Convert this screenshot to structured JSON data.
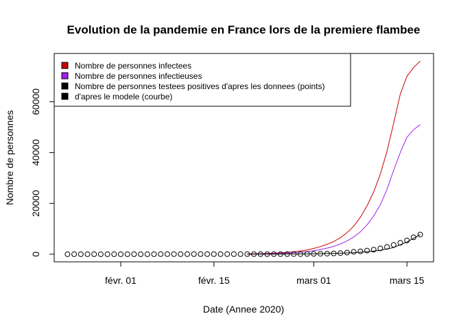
{
  "chart_data": {
    "type": "line",
    "title": "Evolution de la pandemie en France lors de la premiere flambee",
    "xlabel": "Date (Annee 2020)",
    "ylabel": "Nombre de personnes",
    "x_ticks": [
      {
        "date": "2020-02-01",
        "label": "févr. 01"
      },
      {
        "date": "2020-02-15",
        "label": "févr. 15"
      },
      {
        "date": "2020-03-01",
        "label": "mars 01"
      },
      {
        "date": "2020-03-15",
        "label": "mars 15"
      }
    ],
    "y_ticks": [
      0,
      20000,
      40000,
      60000
    ],
    "xlim": [
      "2020-01-22",
      "2020-03-19"
    ],
    "ylim": [
      -3000,
      79000
    ],
    "legend_position": "top-left",
    "legend": [
      {
        "label": "Nombre de personnes infectees",
        "color": "#cc0000"
      },
      {
        "label": "Nombre de personnes infectieuses",
        "color": "#a020f0"
      },
      {
        "label": "Nombre de personnes testees positives d'apres les donnees (points)",
        "color": "#000000"
      },
      {
        "label": "d'apres le modele (courbe)",
        "color": "#000000"
      }
    ],
    "series": [
      {
        "name": "Nombre de personnes infectees",
        "color": "#cc0000",
        "style": "line",
        "x": [
          "2020-02-20",
          "2020-02-21",
          "2020-02-22",
          "2020-02-23",
          "2020-02-24",
          "2020-02-25",
          "2020-02-26",
          "2020-02-27",
          "2020-02-28",
          "2020-02-29",
          "2020-03-01",
          "2020-03-02",
          "2020-03-03",
          "2020-03-04",
          "2020-03-05",
          "2020-03-06",
          "2020-03-07",
          "2020-03-08",
          "2020-03-09",
          "2020-03-10",
          "2020-03-11",
          "2020-03-12",
          "2020-03-13",
          "2020-03-14",
          "2020-03-15",
          "2020-03-16",
          "2020-03-17"
        ],
        "y": [
          100,
          150,
          200,
          300,
          400,
          500,
          700,
          1000,
          1300,
          1700,
          2300,
          3000,
          3900,
          5000,
          6500,
          8500,
          11000,
          14500,
          19000,
          24500,
          31500,
          40500,
          51500,
          63000,
          70000,
          73500,
          76000
        ]
      },
      {
        "name": "Nombre de personnes infectieuses",
        "color": "#a020f0",
        "style": "line",
        "x": [
          "2020-02-20",
          "2020-02-21",
          "2020-02-22",
          "2020-02-23",
          "2020-02-24",
          "2020-02-25",
          "2020-02-26",
          "2020-02-27",
          "2020-02-28",
          "2020-02-29",
          "2020-03-01",
          "2020-03-02",
          "2020-03-03",
          "2020-03-04",
          "2020-03-05",
          "2020-03-06",
          "2020-03-07",
          "2020-03-08",
          "2020-03-09",
          "2020-03-10",
          "2020-03-11",
          "2020-03-12",
          "2020-03-13",
          "2020-03-14",
          "2020-03-15",
          "2020-03-16",
          "2020-03-17"
        ],
        "y": [
          50,
          80,
          120,
          180,
          250,
          330,
          450,
          600,
          800,
          1050,
          1400,
          1850,
          2400,
          3100,
          4000,
          5200,
          6800,
          8800,
          11500,
          15000,
          19500,
          25500,
          33000,
          40000,
          46000,
          49000,
          51000
        ]
      },
      {
        "name": "Nombre de personnes testees positives d'apres les donnees (points)",
        "color": "#000000",
        "style": "points",
        "x": [
          "2020-01-24",
          "2020-01-25",
          "2020-01-26",
          "2020-01-27",
          "2020-01-28",
          "2020-01-29",
          "2020-01-30",
          "2020-01-31",
          "2020-02-01",
          "2020-02-02",
          "2020-02-03",
          "2020-02-04",
          "2020-02-05",
          "2020-02-06",
          "2020-02-07",
          "2020-02-08",
          "2020-02-09",
          "2020-02-10",
          "2020-02-11",
          "2020-02-12",
          "2020-02-13",
          "2020-02-14",
          "2020-02-15",
          "2020-02-16",
          "2020-02-17",
          "2020-02-18",
          "2020-02-19",
          "2020-02-20",
          "2020-02-21",
          "2020-02-22",
          "2020-02-23",
          "2020-02-24",
          "2020-02-25",
          "2020-02-26",
          "2020-02-27",
          "2020-02-28",
          "2020-02-29",
          "2020-03-01",
          "2020-03-02",
          "2020-03-03",
          "2020-03-04",
          "2020-03-05",
          "2020-03-06",
          "2020-03-07",
          "2020-03-08",
          "2020-03-09",
          "2020-03-10",
          "2020-03-11",
          "2020-03-12",
          "2020-03-13",
          "2020-03-14",
          "2020-03-15",
          "2020-03-16",
          "2020-03-17"
        ],
        "y": [
          3,
          3,
          3,
          3,
          4,
          5,
          5,
          6,
          6,
          6,
          6,
          6,
          6,
          6,
          11,
          11,
          11,
          11,
          12,
          12,
          12,
          12,
          12,
          12,
          12,
          12,
          12,
          12,
          12,
          12,
          12,
          12,
          14,
          18,
          38,
          57,
          100,
          130,
          191,
          212,
          285,
          423,
          653,
          949,
          1126,
          1412,
          1784,
          2281,
          2876,
          3661,
          4499,
          5423,
          6633,
          7730
        ]
      },
      {
        "name": "d'apres le modele (courbe)",
        "color": "#000000",
        "style": "line",
        "x": [
          "2020-02-20",
          "2020-02-22",
          "2020-02-24",
          "2020-02-26",
          "2020-02-28",
          "2020-03-01",
          "2020-03-03",
          "2020-03-05",
          "2020-03-07",
          "2020-03-09",
          "2020-03-11",
          "2020-03-13",
          "2020-03-15",
          "2020-03-17"
        ],
        "y": [
          10,
          20,
          40,
          70,
          110,
          170,
          260,
          400,
          620,
          950,
          1500,
          2600,
          4800,
          7700
        ]
      }
    ]
  }
}
